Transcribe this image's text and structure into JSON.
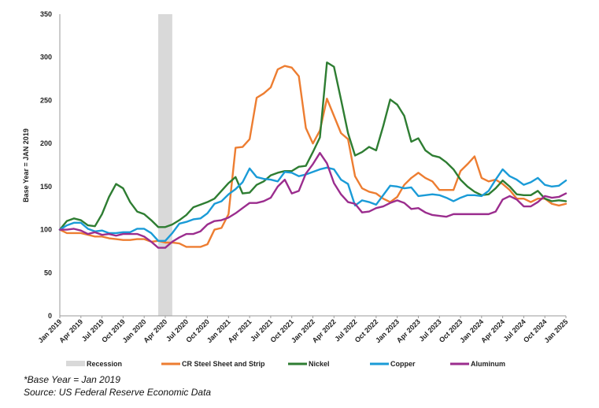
{
  "chart_data": {
    "type": "line",
    "ylabel": "Base Year = JAN 2019",
    "ylim": [
      0,
      350
    ],
    "y_ticks": [
      "0",
      "50",
      "100",
      "150",
      "200",
      "250",
      "300",
      "350"
    ],
    "x_tick_labels": [
      "Jan 2019",
      "Apr 2019",
      "Jul 2019",
      "Oct 2019",
      "Jan 2020",
      "Apr 2020",
      "Jul 2020",
      "Oct 2020",
      "Jan 2021",
      "Apr 2021",
      "Jul 2021",
      "Oct 2021",
      "Jan 2022",
      "Apr 2022",
      "Jul 2022",
      "Oct 2022",
      "Jan 2023",
      "Apr 2023",
      "Jul 2023",
      "Oct 2023",
      "Jan 2024",
      "Apr 2024",
      "Jul 2024",
      "Oct 2024",
      "Jan 2025"
    ],
    "grid": false,
    "legend_position": "bottom",
    "recession": {
      "name": "Recession",
      "start_month": 14,
      "end_month": 16,
      "color": "#d9d9d9"
    },
    "series": [
      {
        "name": "CR Steel Sheet and Strip",
        "color": "#ed7d31",
        "values": [
          100,
          96,
          96,
          96,
          94,
          92,
          92,
          90,
          89,
          88,
          88,
          89,
          89,
          86,
          87,
          85,
          85,
          84,
          80,
          80,
          80,
          83,
          100,
          102,
          118,
          195,
          196,
          205,
          253,
          258,
          265,
          286,
          290,
          288,
          278,
          218,
          200,
          215,
          252,
          232,
          212,
          205,
          162,
          148,
          144,
          142,
          136,
          132,
          138,
          152,
          160,
          166,
          160,
          156,
          146,
          146,
          146,
          168,
          176,
          185,
          160,
          156,
          158,
          153,
          146,
          136,
          136,
          132,
          136,
          136,
          130,
          128,
          130
        ]
      },
      {
        "name": "Nickel",
        "color": "#2e7d32",
        "values": [
          100,
          110,
          113,
          111,
          105,
          104,
          118,
          138,
          153,
          148,
          132,
          121,
          118,
          111,
          103,
          103,
          106,
          111,
          117,
          126,
          129,
          132,
          136,
          145,
          154,
          161,
          142,
          143,
          152,
          156,
          163,
          166,
          168,
          168,
          173,
          174,
          190,
          207,
          294,
          289,
          251,
          212,
          186,
          190,
          196,
          192,
          220,
          251,
          245,
          232,
          202,
          206,
          192,
          186,
          184,
          178,
          170,
          158,
          150,
          144,
          140,
          141,
          148,
          157,
          150,
          141,
          140,
          140,
          145,
          136,
          133,
          134,
          133
        ]
      },
      {
        "name": "Copper",
        "color": "#1a9bd7",
        "values": [
          100,
          105,
          108,
          108,
          101,
          98,
          99,
          96,
          96,
          97,
          97,
          101,
          101,
          96,
          87,
          87,
          96,
          107,
          109,
          112,
          113,
          119,
          130,
          133,
          141,
          147,
          155,
          171,
          161,
          159,
          158,
          156,
          167,
          166,
          162,
          164,
          167,
          170,
          172,
          170,
          158,
          153,
          128,
          134,
          132,
          129,
          140,
          151,
          150,
          148,
          149,
          139,
          140,
          141,
          140,
          137,
          133,
          137,
          140,
          140,
          139,
          145,
          158,
          170,
          162,
          158,
          152,
          155,
          160,
          152,
          150,
          151,
          157
        ]
      },
      {
        "name": "Aluminum",
        "color": "#9b2d8e",
        "values": [
          100,
          100,
          101,
          99,
          95,
          97,
          94,
          95,
          93,
          95,
          95,
          95,
          92,
          86,
          79,
          79,
          86,
          91,
          95,
          95,
          98,
          106,
          110,
          111,
          114,
          119,
          125,
          131,
          131,
          133,
          137,
          150,
          158,
          142,
          145,
          165,
          176,
          189,
          177,
          154,
          141,
          132,
          130,
          120,
          121,
          125,
          127,
          131,
          134,
          131,
          124,
          125,
          120,
          117,
          116,
          115,
          118,
          118,
          118,
          118,
          118,
          118,
          121,
          135,
          139,
          135,
          127,
          127,
          132,
          139,
          137,
          138,
          142
        ]
      }
    ]
  },
  "footnotes": {
    "base_year": "*Base Year = Jan 2019",
    "source": "Source:  US Federal Reserve Economic Data"
  }
}
